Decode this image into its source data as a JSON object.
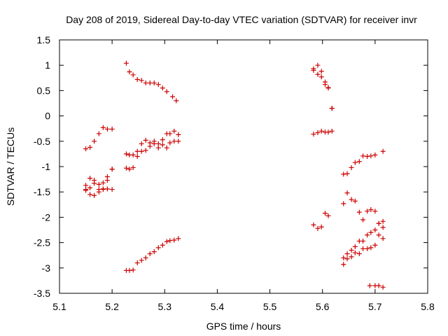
{
  "chart_data": {
    "type": "scatter",
    "title": "Day 208 of 2019, Sidereal Day-to-day VTEC variation (SDTVAR) for receiver invr",
    "xlabel": "GPS time / hours",
    "ylabel": "SDTVAR / TECUs",
    "xlim": [
      5.1,
      5.8
    ],
    "ylim": [
      -3.5,
      1.5
    ],
    "xticks": [
      5.1,
      5.2,
      5.3,
      5.4,
      5.5,
      5.6,
      5.7,
      5.8
    ],
    "xtick_labels": [
      "5.1",
      "5.2",
      "5.3",
      "5.4",
      "5.5",
      "5.6",
      "5.7",
      "5.8"
    ],
    "yticks": [
      -3.5,
      -3,
      -2.5,
      -2,
      -1.5,
      -1,
      -0.5,
      0,
      0.5,
      1,
      1.5
    ],
    "ytick_labels": [
      "-3.5",
      "-3",
      "-2.5",
      "-2",
      "-1.5",
      "-1",
      "-0.5",
      "0",
      "0.5",
      "1",
      "1.5"
    ],
    "grid": false,
    "marker": "+",
    "marker_color": "#cc0000",
    "series": [
      {
        "name": "SDTVAR",
        "points": [
          [
            5.15,
            -0.65
          ],
          [
            5.158,
            -0.62
          ],
          [
            5.166,
            -0.5
          ],
          [
            5.175,
            -0.35
          ],
          [
            5.183,
            -0.23
          ],
          [
            5.191,
            -0.26
          ],
          [
            5.2,
            -0.26
          ],
          [
            5.15,
            -1.37
          ],
          [
            5.158,
            -1.42
          ],
          [
            5.166,
            -1.27
          ],
          [
            5.175,
            -1.35
          ],
          [
            5.183,
            -1.32
          ],
          [
            5.191,
            -1.2
          ],
          [
            5.2,
            -1.05
          ],
          [
            5.15,
            -1.45
          ],
          [
            5.158,
            -1.23
          ],
          [
            5.166,
            -1.33
          ],
          [
            5.175,
            -1.45
          ],
          [
            5.183,
            -1.44
          ],
          [
            5.191,
            -1.44
          ],
          [
            5.2,
            -1.45
          ],
          [
            5.15,
            -1.47
          ],
          [
            5.158,
            -1.55
          ],
          [
            5.166,
            -1.57
          ],
          [
            5.175,
            -1.5
          ],
          [
            5.183,
            -1.45
          ],
          [
            5.191,
            -1.27
          ],
          [
            5.2,
            -1.05
          ],
          [
            5.227,
            1.04
          ],
          [
            5.233,
            0.87
          ],
          [
            5.24,
            0.81
          ],
          [
            5.248,
            0.72
          ],
          [
            5.256,
            0.7
          ],
          [
            5.264,
            0.65
          ],
          [
            5.272,
            0.65
          ],
          [
            5.28,
            0.65
          ],
          [
            5.288,
            0.62
          ],
          [
            5.296,
            0.55
          ],
          [
            5.304,
            0.48
          ],
          [
            5.315,
            0.38
          ],
          [
            5.322,
            0.3
          ],
          [
            5.227,
            -0.75
          ],
          [
            5.233,
            -0.77
          ],
          [
            5.24,
            -0.77
          ],
          [
            5.248,
            -0.7
          ],
          [
            5.256,
            -0.7
          ],
          [
            5.264,
            -0.68
          ],
          [
            5.272,
            -0.6
          ],
          [
            5.28,
            -0.55
          ],
          [
            5.288,
            -0.55
          ],
          [
            5.296,
            -0.47
          ],
          [
            5.304,
            -0.35
          ],
          [
            5.31,
            -0.35
          ],
          [
            5.318,
            -0.3
          ],
          [
            5.326,
            -0.37
          ],
          [
            5.227,
            -1.03
          ],
          [
            5.233,
            -1.05
          ],
          [
            5.24,
            -1.02
          ],
          [
            5.248,
            -0.8
          ],
          [
            5.256,
            -0.55
          ],
          [
            5.264,
            -0.48
          ],
          [
            5.272,
            -0.53
          ],
          [
            5.28,
            -0.5
          ],
          [
            5.288,
            -0.63
          ],
          [
            5.296,
            -0.57
          ],
          [
            5.304,
            -0.63
          ],
          [
            5.31,
            -0.53
          ],
          [
            5.318,
            -0.5
          ],
          [
            5.326,
            -0.5
          ],
          [
            5.227,
            -3.05
          ],
          [
            5.233,
            -3.05
          ],
          [
            5.24,
            -3.04
          ],
          [
            5.248,
            -2.9
          ],
          [
            5.256,
            -2.85
          ],
          [
            5.264,
            -2.8
          ],
          [
            5.272,
            -2.72
          ],
          [
            5.28,
            -2.68
          ],
          [
            5.288,
            -2.6
          ],
          [
            5.296,
            -2.55
          ],
          [
            5.304,
            -2.48
          ],
          [
            5.31,
            -2.46
          ],
          [
            5.318,
            -2.45
          ],
          [
            5.326,
            -2.42
          ],
          [
            5.583,
            0.93
          ],
          [
            5.591,
            1.0
          ],
          [
            5.598,
            0.88
          ],
          [
            5.605,
            0.67
          ],
          [
            5.611,
            0.56
          ],
          [
            5.618,
            0.15
          ],
          [
            5.583,
            0.9
          ],
          [
            5.591,
            0.82
          ],
          [
            5.598,
            0.77
          ],
          [
            5.605,
            0.62
          ],
          [
            5.611,
            0.55
          ],
          [
            5.618,
            0.15
          ],
          [
            5.583,
            -0.36
          ],
          [
            5.591,
            -0.33
          ],
          [
            5.598,
            -0.3
          ],
          [
            5.605,
            -0.32
          ],
          [
            5.611,
            -0.32
          ],
          [
            5.618,
            -0.3
          ],
          [
            5.583,
            -2.15
          ],
          [
            5.591,
            -2.22
          ],
          [
            5.598,
            -2.19
          ],
          [
            5.605,
            -1.92
          ],
          [
            5.611,
            -1.97
          ],
          [
            5.64,
            -1.73
          ],
          [
            5.647,
            -1.52
          ],
          [
            5.655,
            -1.65
          ],
          [
            5.662,
            -1.68
          ],
          [
            5.67,
            -1.9
          ],
          [
            5.677,
            -2.05
          ],
          [
            5.685,
            -1.88
          ],
          [
            5.692,
            -1.85
          ],
          [
            5.7,
            -1.88
          ],
          [
            5.707,
            -2.12
          ],
          [
            5.715,
            -2.08
          ],
          [
            5.64,
            -1.15
          ],
          [
            5.647,
            -1.14
          ],
          [
            5.655,
            -1.02
          ],
          [
            5.662,
            -0.92
          ],
          [
            5.67,
            -0.9
          ],
          [
            5.677,
            -0.79
          ],
          [
            5.685,
            -0.8
          ],
          [
            5.692,
            -0.79
          ],
          [
            5.7,
            -0.77
          ],
          [
            5.715,
            -0.7
          ],
          [
            5.64,
            -2.8
          ],
          [
            5.647,
            -2.72
          ],
          [
            5.655,
            -2.65
          ],
          [
            5.662,
            -2.7
          ],
          [
            5.67,
            -2.72
          ],
          [
            5.677,
            -2.62
          ],
          [
            5.685,
            -2.62
          ],
          [
            5.692,
            -2.6
          ],
          [
            5.7,
            -2.55
          ],
          [
            5.707,
            -2.35
          ],
          [
            5.715,
            -2.42
          ],
          [
            5.64,
            -2.93
          ],
          [
            5.647,
            -2.82
          ],
          [
            5.655,
            -2.78
          ],
          [
            5.662,
            -2.58
          ],
          [
            5.67,
            -2.47
          ],
          [
            5.677,
            -2.47
          ],
          [
            5.685,
            -2.35
          ],
          [
            5.692,
            -2.3
          ],
          [
            5.7,
            -2.25
          ],
          [
            5.707,
            -2.12
          ],
          [
            5.715,
            -2.2
          ],
          [
            5.69,
            -3.35
          ],
          [
            5.7,
            -3.35
          ],
          [
            5.707,
            -3.35
          ],
          [
            5.715,
            -3.38
          ]
        ]
      }
    ]
  }
}
